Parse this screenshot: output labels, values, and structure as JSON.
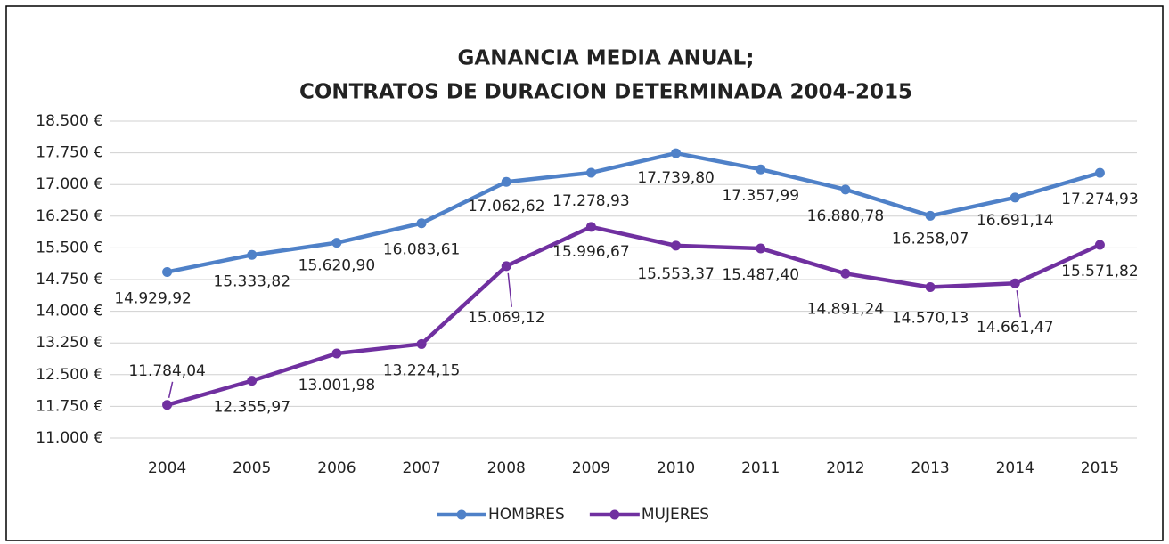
{
  "chart_data": {
    "type": "line",
    "title": [
      "GANANCIA MEDIA ANUAL;",
      "CONTRATOS DE DURACION DETERMINADA 2004-2015"
    ],
    "categories": [
      "2004",
      "2005",
      "2006",
      "2007",
      "2008",
      "2009",
      "2010",
      "2011",
      "2012",
      "2013",
      "2014",
      "2015"
    ],
    "series": [
      {
        "name": "HOMBRES",
        "color": "#4f81c8",
        "values": [
          14929.92,
          15333.82,
          15620.9,
          16083.61,
          17062.62,
          17278.93,
          17739.8,
          17357.99,
          16880.78,
          16258.07,
          16691.14,
          17274.93
        ],
        "value_labels": [
          "14.929,92",
          "15.333,82",
          "15.620,90",
          "16.083,61",
          "17.062,62",
          "17.278,93",
          "17.739,80",
          "17.357,99",
          "16.880,78",
          "16.258,07",
          "16.691,14",
          "17.274,93"
        ]
      },
      {
        "name": "MUJERES",
        "color": "#7030a0",
        "values": [
          11784.04,
          12355.97,
          13001.98,
          13224.15,
          15069.12,
          15996.67,
          15553.37,
          15487.4,
          14891.24,
          14570.13,
          14661.47,
          15571.82
        ],
        "value_labels": [
          "11.784,04",
          "12.355,97",
          "13.001,98",
          "13.224,15",
          "15.069,12",
          "15.996,67",
          "15.553,37",
          "15.487,40",
          "14.891,24",
          "14.570,13",
          "14.661,47",
          "15.571,82"
        ]
      }
    ],
    "ylim": [
      11000,
      18500
    ],
    "yticks": [
      {
        "value": 11000,
        "label": "11.000 €"
      },
      {
        "value": 11750,
        "label": "11.750 €"
      },
      {
        "value": 12500,
        "label": "12.500 €"
      },
      {
        "value": 13250,
        "label": "13.250 €"
      },
      {
        "value": 14000,
        "label": "14.000 €"
      },
      {
        "value": 14750,
        "label": "14.750 €"
      },
      {
        "value": 15500,
        "label": "15.500 €"
      },
      {
        "value": 16250,
        "label": "16.250 €"
      },
      {
        "value": 17000,
        "label": "17.000 €"
      },
      {
        "value": 17750,
        "label": "17.750 €"
      },
      {
        "value": 18500,
        "label": "18.500 €"
      }
    ],
    "grid": true,
    "legend": "bottom"
  }
}
